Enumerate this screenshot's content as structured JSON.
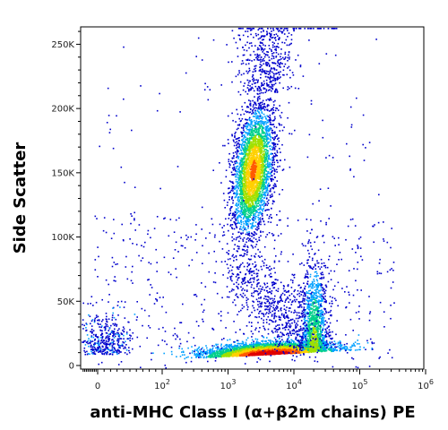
{
  "chart_data": {
    "type": "scatter",
    "title": "",
    "xlabel": "anti-MHC Class I (α+β2m chains) PE",
    "ylabel": "Side Scatter",
    "x_scale": "biexponential",
    "xlim": [
      0,
      1000000
    ],
    "ylim": [
      0,
      262144
    ],
    "x_tick_labels": [
      {
        "value": 0,
        "base": "0",
        "exp": ""
      },
      {
        "value": 100,
        "base": "10",
        "exp": "2"
      },
      {
        "value": 1000,
        "base": "10",
        "exp": "3"
      },
      {
        "value": 10000,
        "base": "10",
        "exp": "4"
      },
      {
        "value": 100000,
        "base": "10",
        "exp": "5"
      },
      {
        "value": 1000000,
        "base": "10",
        "exp": "6"
      }
    ],
    "y_tick_labels": [
      {
        "value": 0,
        "label": "0"
      },
      {
        "value": 50000,
        "label": "50K"
      },
      {
        "value": 100000,
        "label": "100K"
      },
      {
        "value": 150000,
        "label": "150K"
      },
      {
        "value": 200000,
        "label": "200K"
      },
      {
        "value": 250000,
        "label": "250K"
      }
    ],
    "populations": [
      {
        "x_center": 3000,
        "y_center": 145000,
        "y_spread": 45000,
        "density": "high"
      },
      {
        "x_center": 8000,
        "y_center": 8000,
        "y_spread": 6000,
        "density": "very high"
      },
      {
        "x_center": 25000,
        "y_center": 35000,
        "y_spread": 20000,
        "density": "medium"
      },
      {
        "x_center": 30,
        "y_center": 8000,
        "y_spread": 10000,
        "density": "low"
      }
    ],
    "color_scale": [
      "#0000cc",
      "#00a0ff",
      "#00d08a",
      "#a0e000",
      "#ffd000",
      "#ff5a00",
      "#e00000"
    ],
    "grid": false
  }
}
